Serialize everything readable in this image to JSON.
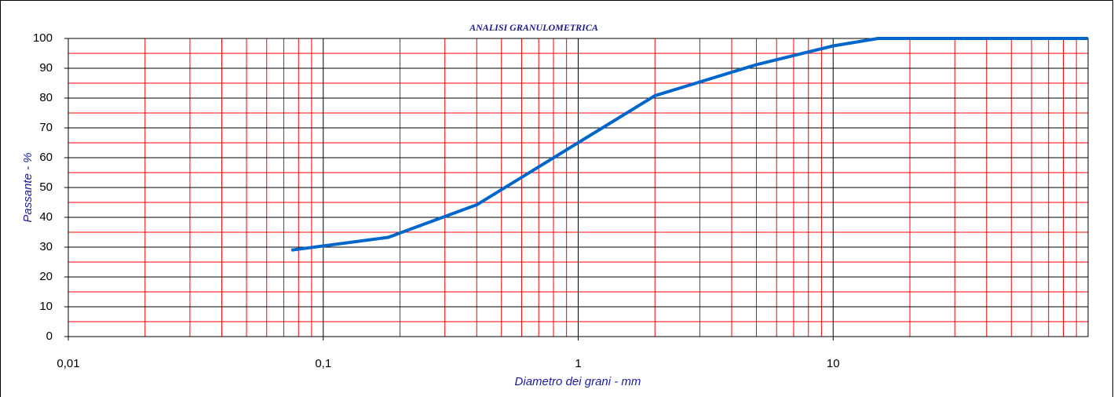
{
  "chart_data": {
    "type": "line",
    "title": "ANALISI GRANULOMETRICA",
    "x_label": "Diametro dei grani  -  mm",
    "y_label": "Passante  -  %",
    "x_log": true,
    "x": [
      0.075,
      0.18,
      0.4,
      2,
      5,
      10,
      15,
      100
    ],
    "series": [
      {
        "name": "Passante",
        "color": "#0066cc",
        "values": [
          29,
          33.3,
          44.2,
          80.8,
          91.2,
          97.5,
          100,
          100
        ]
      }
    ],
    "xlim": [
      0.01,
      100
    ],
    "ylim": [
      0,
      100
    ],
    "xticks": [
      {
        "value": 0.01,
        "label": "0,01"
      },
      {
        "value": 0.1,
        "label": "0,1"
      },
      1,
      10
    ],
    "yticks": [
      0,
      10,
      20,
      30,
      40,
      50,
      60,
      70,
      80,
      90,
      100
    ],
    "x_minor_ticks": [
      0.02,
      0.03,
      0.04,
      0.05,
      0.06,
      0.07,
      0.08,
      0.09,
      0.2,
      0.3,
      0.4,
      0.5,
      0.6,
      0.7,
      0.8,
      0.9,
      2,
      3,
      4,
      5,
      6,
      7,
      8,
      9,
      20,
      30,
      40,
      50,
      60,
      70,
      80,
      90
    ],
    "y_minor_ticks": [
      5,
      15,
      25,
      35,
      45,
      55,
      65,
      75,
      85,
      95
    ],
    "grid": true,
    "major_grid_color": "#000000",
    "minor_grid_color": "#ff0000"
  }
}
